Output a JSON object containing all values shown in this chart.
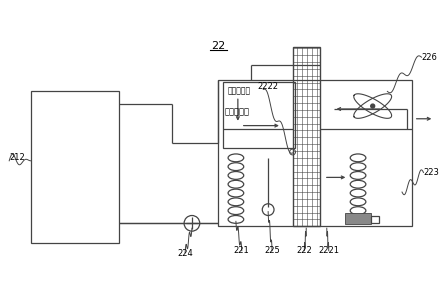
{
  "bg_color": "#ffffff",
  "line_color": "#444444",
  "title": "22",
  "label_texts": {
    "212": "212",
    "221": "221",
    "222": "222",
    "2221": "2221",
    "2222": "2222",
    "223": "223",
    "224": "224",
    "225": "225",
    "226": "226",
    "outer_air": "外环境气流",
    "inner_air": "内循环气流"
  }
}
